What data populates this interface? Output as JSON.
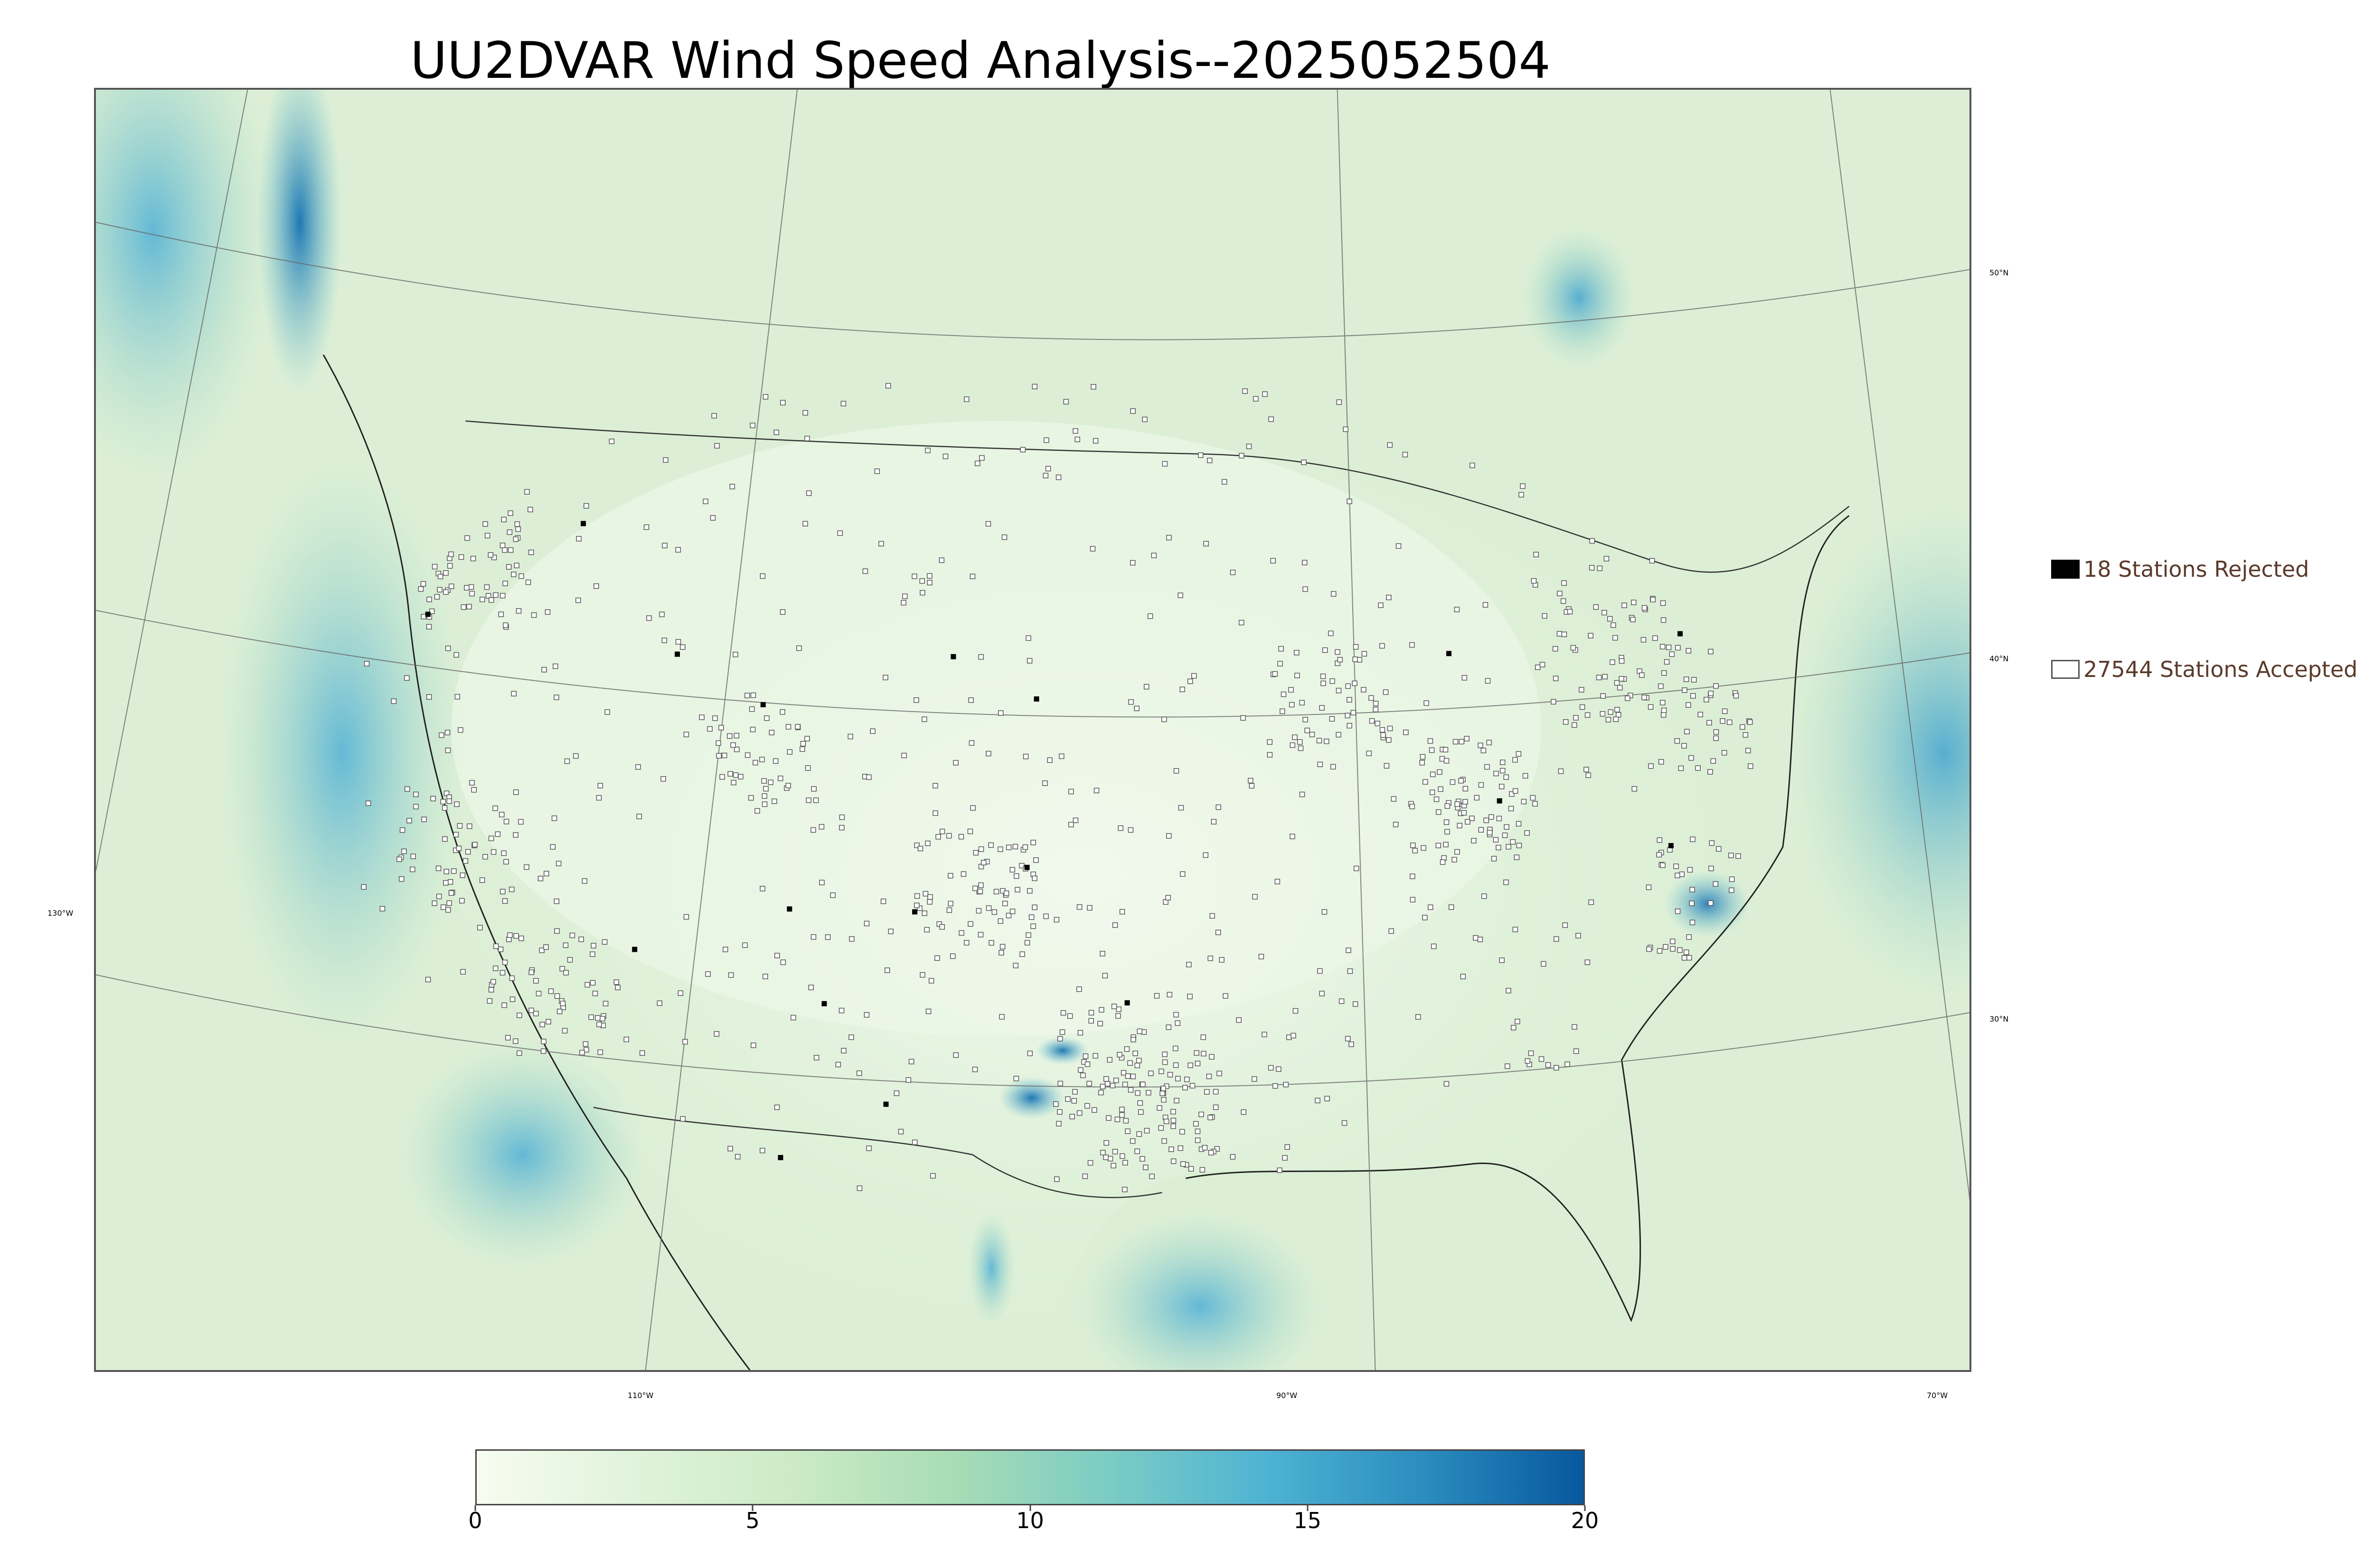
{
  "title": "UU2DVAR Wind Speed Analysis--2025052504",
  "map": {
    "background_color": "#e4f3df",
    "land_color": "#eef8ea",
    "high_wind_color": "#4aa8cf",
    "station_marker": "open-square",
    "lon_labels": [
      "130°W",
      "110°W",
      "90°W",
      "70°W"
    ],
    "lat_labels": [
      "50°N",
      "40°N",
      "30°N"
    ]
  },
  "legend": {
    "rejected": {
      "label": "18 Stations Rejected",
      "count": 18,
      "color": "#000000"
    },
    "accepted": {
      "label": "27544 Stations Accepted",
      "count": 27544,
      "color": "#ffffff"
    }
  },
  "colorbar": {
    "min": 0,
    "max": 20,
    "ticks": [
      "0",
      "5",
      "10",
      "15",
      "20"
    ],
    "colors": [
      "#f7fcf0",
      "#e0f3db",
      "#ccebc5",
      "#a8ddb5",
      "#7bccc4",
      "#4eb3d3",
      "#2b8cbe",
      "#08589e"
    ]
  }
}
